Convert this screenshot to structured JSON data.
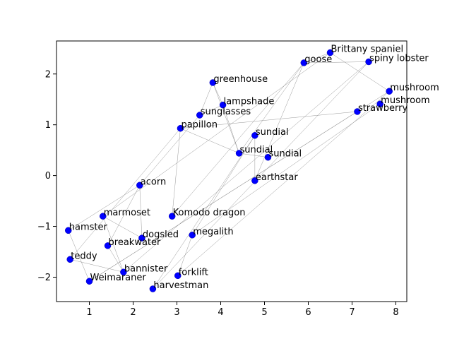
{
  "chart_data": {
    "type": "scatter",
    "title": "",
    "xlabel": "",
    "ylabel": "",
    "xlim": [
      0.25,
      8.25
    ],
    "ylim": [
      -2.48,
      2.65
    ],
    "xticks": [
      1,
      2,
      3,
      4,
      5,
      6,
      7,
      8
    ],
    "yticks": [
      -2,
      -1,
      0,
      1,
      2
    ],
    "grid": false,
    "legend": "none",
    "point_color": "#0000ff",
    "edge_color": "#808080",
    "points": [
      {
        "label": "Brittany spaniel",
        "x": 6.5,
        "y": 2.42
      },
      {
        "label": "goose",
        "x": 5.9,
        "y": 2.22
      },
      {
        "label": "spiny lobster",
        "x": 7.38,
        "y": 2.24
      },
      {
        "label": "greenhouse",
        "x": 3.82,
        "y": 1.83
      },
      {
        "label": "mushroom",
        "x": 7.85,
        "y": 1.66
      },
      {
        "label": "mushroom",
        "x": 7.64,
        "y": 1.41
      },
      {
        "label": "lampshade",
        "x": 4.05,
        "y": 1.39
      },
      {
        "label": "strawberry",
        "x": 7.12,
        "y": 1.26
      },
      {
        "label": "sunglasses",
        "x": 3.52,
        "y": 1.19
      },
      {
        "label": "papillon",
        "x": 3.08,
        "y": 0.93
      },
      {
        "label": "sundial",
        "x": 4.78,
        "y": 0.79
      },
      {
        "label": "sundial",
        "x": 4.42,
        "y": 0.44
      },
      {
        "label": "sundial",
        "x": 5.08,
        "y": 0.36
      },
      {
        "label": "earthstar",
        "x": 4.78,
        "y": -0.1
      },
      {
        "label": "acorn",
        "x": 2.15,
        "y": -0.19
      },
      {
        "label": "marmoset",
        "x": 1.31,
        "y": -0.8
      },
      {
        "label": "Komodo dragon",
        "x": 2.89,
        "y": -0.8
      },
      {
        "label": "hamster",
        "x": 0.52,
        "y": -1.08
      },
      {
        "label": "dogsled",
        "x": 2.2,
        "y": -1.23
      },
      {
        "label": "megalith",
        "x": 3.35,
        "y": -1.17
      },
      {
        "label": "breakwater",
        "x": 1.42,
        "y": -1.38
      },
      {
        "label": "teddy",
        "x": 0.56,
        "y": -1.65
      },
      {
        "label": "bannister",
        "x": 1.78,
        "y": -1.9
      },
      {
        "label": "Weimaraner",
        "x": 1.0,
        "y": -2.08
      },
      {
        "label": "forklift",
        "x": 3.02,
        "y": -1.97
      },
      {
        "label": "harvestman",
        "x": 2.45,
        "y": -2.23
      }
    ],
    "edges": [
      [
        0,
        1
      ],
      [
        0,
        4
      ],
      [
        0,
        15
      ],
      [
        1,
        13
      ],
      [
        1,
        11
      ],
      [
        1,
        2
      ],
      [
        1,
        16
      ],
      [
        2,
        25
      ],
      [
        2,
        22
      ],
      [
        3,
        6
      ],
      [
        3,
        8
      ],
      [
        3,
        11
      ],
      [
        4,
        24
      ],
      [
        4,
        23
      ],
      [
        5,
        19
      ],
      [
        6,
        8
      ],
      [
        6,
        11
      ],
      [
        7,
        9
      ],
      [
        7,
        23
      ],
      [
        8,
        14
      ],
      [
        9,
        16
      ],
      [
        9,
        21
      ],
      [
        9,
        11
      ],
      [
        10,
        13
      ],
      [
        10,
        25
      ],
      [
        11,
        12
      ],
      [
        14,
        18
      ],
      [
        14,
        20
      ],
      [
        14,
        17
      ],
      [
        15,
        18
      ],
      [
        15,
        22
      ],
      [
        17,
        23
      ],
      [
        19,
        24
      ],
      [
        19,
        10
      ],
      [
        20,
        22
      ],
      [
        21,
        22
      ]
    ]
  }
}
